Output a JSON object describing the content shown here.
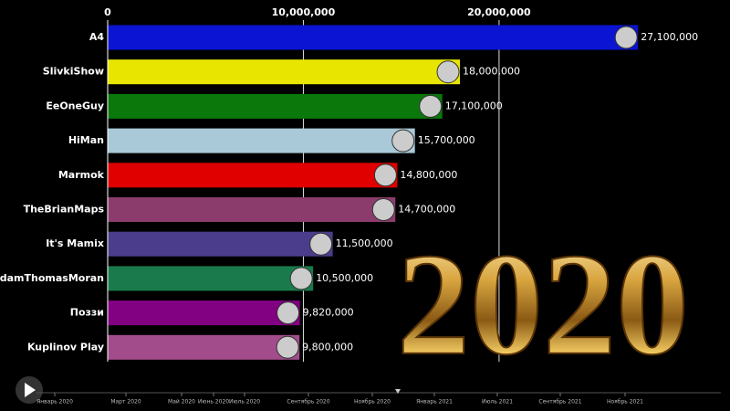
{
  "chart_data": {
    "type": "bar",
    "orientation": "horizontal",
    "categories": [
      "A4",
      "SlivkiShow",
      "EeOneGuy",
      "HiMan",
      "Marmok",
      "TheBrianMaps",
      "It's Mamix",
      "AdamThomasMoran",
      "Поззи",
      "Kuplinov Play"
    ],
    "values": [
      27100000,
      18000000,
      17100000,
      15700000,
      14800000,
      14700000,
      11500000,
      10500000,
      9820000,
      9800000
    ],
    "value_labels": [
      "27,100,000",
      "18,000,000",
      "17,100,000",
      "15,700,000",
      "14,800,000",
      "14,700,000",
      "11,500,000",
      "10,500,000",
      "9,820,000",
      "9,800,000"
    ],
    "colors": [
      "#0a14d2",
      "#e8e600",
      "#0a780a",
      "#a9c8d8",
      "#e00000",
      "#8c3c6c",
      "#4c3c8c",
      "#1a7a4c",
      "#820082",
      "#a24c8c"
    ],
    "xlim": [
      0,
      31800000
    ],
    "xticks": [
      0,
      {
        "value": 10000000,
        "label": "10,000,000"
      },
      {
        "value": 20000000,
        "label": "20,000,000"
      }
    ],
    "grid": true,
    "annotation": "2020"
  },
  "timeline": {
    "labels": [
      "Январь 2020",
      "Март 2020",
      "Май 2020",
      "Июнь 2020",
      "Июль 2020",
      "Сентябрь 2020",
      "Ноябрь 2020",
      "Январь 2021",
      "Июль 2021",
      "Сентябрь 2021",
      "Ноябрь 2021"
    ]
  }
}
